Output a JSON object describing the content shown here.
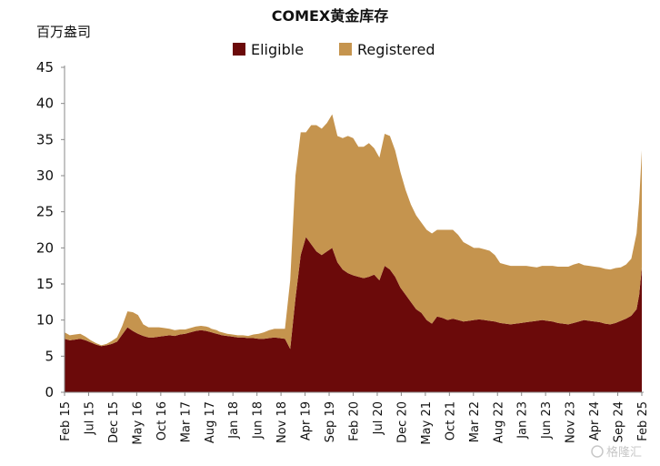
{
  "chart_data": {
    "type": "area",
    "stacked": true,
    "title": "COMEX黄金库存",
    "ylabel": "百万盎司",
    "ylim": [
      0,
      45
    ],
    "yticks": [
      "0",
      "5",
      "10",
      "15",
      "20",
      "25",
      "30",
      "35",
      "40",
      "45"
    ],
    "legend_position": "top-center",
    "x_tick_labels": [
      "Feb 15",
      "Jul 15",
      "Dec 15",
      "May 16",
      "Oct 16",
      "Mar 17",
      "Aug 17",
      "Jan 18",
      "Jun 18",
      "Nov 18",
      "Apr 19",
      "Sep 19",
      "Feb 20",
      "Jul 20",
      "Dec 20",
      "May 21",
      "Oct 21",
      "Mar 22",
      "Aug 22",
      "Jan 23",
      "Jun 23",
      "Nov 23",
      "Apr 24",
      "Sep 24",
      "Feb 25"
    ],
    "x_month_index": [
      0,
      4,
      8,
      12,
      16,
      20,
      24,
      28,
      32,
      36,
      40,
      44,
      48,
      52,
      56,
      60,
      64,
      68,
      72,
      76,
      80,
      84,
      88,
      92,
      96,
      100,
      104,
      108,
      110,
      112,
      114,
      116,
      118,
      120,
      124,
      128,
      132,
      136,
      140,
      144,
      148,
      152,
      156,
      160,
      164,
      168,
      172,
      176,
      180,
      184,
      188,
      192,
      196,
      200,
      204,
      208,
      212,
      216,
      220,
      224,
      228,
      232,
      236,
      240,
      244,
      248,
      252,
      256,
      260,
      264,
      268,
      272,
      276,
      280,
      284,
      288,
      292,
      296,
      300,
      304,
      308,
      312,
      316,
      320,
      324,
      328,
      332,
      336,
      340,
      344,
      348,
      352,
      356,
      360,
      364,
      368,
      372,
      376,
      380,
      384,
      388,
      392,
      396,
      400,
      404,
      408,
      412,
      416,
      420,
      424,
      428,
      432,
      436,
      438,
      440
    ],
    "series": [
      {
        "name": "Eligible",
        "color": "#6b0a0a",
        "values": [
          7.4,
          7.2,
          7.3,
          7.4,
          7.2,
          6.9,
          6.6,
          6.4,
          6.5,
          6.7,
          7.0,
          8.0,
          9.0,
          8.5,
          8.1,
          7.8,
          7.6,
          7.6,
          7.7,
          7.8,
          7.9,
          7.8,
          8.0,
          8.1,
          8.3,
          8.5,
          8.6,
          8.5,
          8.4,
          8.3,
          8.2,
          8.1,
          8.0,
          7.9,
          7.8,
          7.7,
          7.6,
          7.6,
          7.5,
          7.5,
          7.4,
          7.4,
          7.5,
          7.6,
          7.5,
          7.4,
          6.0,
          13.0,
          19.0,
          21.5,
          20.5,
          19.5,
          19.0,
          19.5,
          20.0,
          18.0,
          17.0,
          16.5,
          16.2,
          16.0,
          15.8,
          16.0,
          16.3,
          15.5,
          17.5,
          17.0,
          16.0,
          14.5,
          13.5,
          12.5,
          11.5,
          11.0,
          10.0,
          9.5,
          10.5,
          10.3,
          10.0,
          10.2,
          10.0,
          9.8,
          9.9,
          10.0,
          10.1,
          10.0,
          9.9,
          9.8,
          9.6,
          9.5,
          9.4,
          9.5,
          9.6,
          9.7,
          9.8,
          9.9,
          10.0,
          9.9,
          9.8,
          9.6,
          9.5,
          9.4,
          9.6,
          9.8,
          10.0,
          9.9,
          9.8,
          9.7,
          9.5,
          9.4,
          9.6,
          9.9,
          10.2,
          10.6,
          11.5,
          13.5,
          17.3
        ]
      },
      {
        "name": "Registered",
        "color": "#c5944e",
        "values": [
          0.9,
          0.7,
          0.7,
          0.7,
          0.5,
          0.3,
          0.2,
          0.1,
          0.2,
          0.4,
          0.6,
          1.2,
          2.2,
          2.6,
          2.6,
          1.6,
          1.4,
          1.4,
          1.3,
          1.1,
          0.9,
          0.8,
          0.7,
          0.6,
          0.6,
          0.6,
          0.6,
          0.6,
          0.6,
          0.5,
          0.5,
          0.5,
          0.4,
          0.4,
          0.3,
          0.3,
          0.3,
          0.3,
          0.3,
          0.5,
          0.7,
          0.9,
          1.1,
          1.2,
          1.3,
          1.4,
          9.5,
          17.0,
          17.0,
          14.5,
          16.5,
          17.5,
          17.5,
          17.8,
          18.5,
          17.5,
          18.2,
          19.0,
          19.0,
          18.0,
          18.2,
          18.5,
          17.5,
          17.0,
          18.3,
          18.5,
          17.5,
          16.0,
          14.5,
          13.5,
          13.0,
          12.5,
          12.5,
          12.5,
          12.0,
          12.2,
          12.5,
          12.3,
          11.8,
          11.0,
          10.5,
          10.0,
          9.9,
          9.8,
          9.7,
          9.2,
          8.3,
          8.2,
          8.1,
          8.0,
          7.9,
          7.8,
          7.6,
          7.4,
          7.5,
          7.6,
          7.7,
          7.8,
          7.9,
          8.0,
          8.1,
          8.1,
          7.6,
          7.6,
          7.6,
          7.6,
          7.6,
          7.6,
          7.6,
          7.4,
          7.5,
          7.9,
          10.5,
          13.0,
          16.2
        ]
      }
    ]
  },
  "watermark": {
    "icon": "gelonghui-logo-icon",
    "text": "格隆汇"
  }
}
